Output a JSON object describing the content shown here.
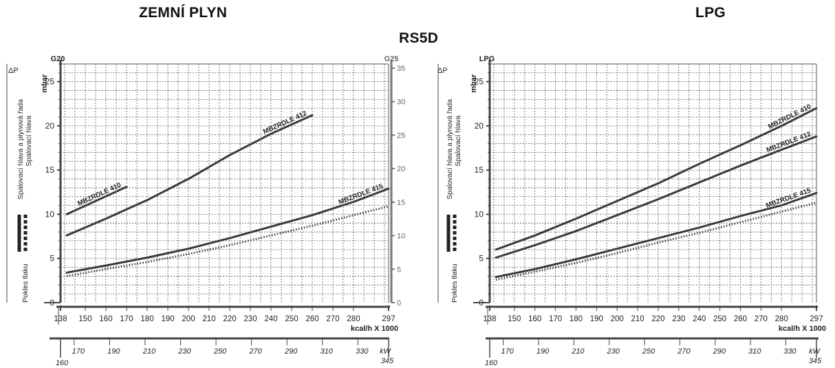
{
  "titles": {
    "left": "ZEMNÍ PLYN",
    "right": "LPG",
    "center": "RS5D"
  },
  "colors": {
    "line": "#3a3a3a",
    "grid": "#555555",
    "axis": "#444444"
  },
  "chart_data": [
    {
      "type": "line",
      "gas_label_left": "G20",
      "gas_label_right": "G25",
      "dp_label": "ΔP",
      "unit_label": "mbar",
      "ylabel_outer": "Pokles tlaku",
      "ylabel_head_train": "Spalovací hlava a plynová řada",
      "ylabel_head": "Spalovací hlava",
      "xlabel_kcal": "kcal/h X 1000",
      "xlabel_kw": "kW",
      "grid": true,
      "xlim": [
        138,
        297
      ],
      "ylim": [
        0,
        27
      ],
      "xticks": [
        138,
        150,
        160,
        170,
        180,
        190,
        200,
        210,
        220,
        230,
        240,
        250,
        260,
        270,
        280,
        297
      ],
      "xtick_labels": [
        "138",
        "150",
        "160",
        "170",
        "180",
        "190",
        "200",
        "210",
        "220",
        "230",
        "240",
        "250",
        "260",
        "270",
        "280",
        "297"
      ],
      "yticks_left": [
        0,
        5,
        10,
        15,
        20,
        25
      ],
      "ytick_labels_left": [
        "0",
        "5",
        "10",
        "15",
        "20",
        "25"
      ],
      "yticks_right": [
        0,
        5,
        10,
        15,
        20,
        25,
        30,
        35
      ],
      "ytick_labels_right": [
        "0",
        "5",
        "10",
        "15",
        "20",
        "25",
        "30",
        "35"
      ],
      "kw_axis": {
        "min_label": "160",
        "max_label": "345",
        "ticks": [
          170,
          190,
          210,
          230,
          250,
          270,
          290,
          310,
          330
        ],
        "tick_labels": [
          "170",
          "190",
          "210",
          "230",
          "250",
          "270",
          "290",
          "310",
          "330"
        ]
      },
      "series": [
        {
          "name": "MBZRDLE 410",
          "style": "solid",
          "x": [
            141,
            170
          ],
          "y": [
            10.0,
            13.1
          ]
        },
        {
          "name": "MBZRDLE 412",
          "style": "solid",
          "x": [
            141,
            160,
            180,
            200,
            220,
            240,
            260
          ],
          "y": [
            7.6,
            9.5,
            11.6,
            14.0,
            16.7,
            19.1,
            21.2
          ]
        },
        {
          "name": "MBZRDLE 415",
          "style": "solid",
          "x": [
            141,
            160,
            180,
            200,
            220,
            240,
            260,
            280,
            297
          ],
          "y": [
            3.4,
            4.2,
            5.1,
            6.1,
            7.3,
            8.6,
            9.9,
            11.4,
            12.9
          ]
        },
        {
          "name": "",
          "style": "dotted",
          "x": [
            141,
            160,
            180,
            200,
            220,
            240,
            260,
            280,
            297
          ],
          "y": [
            3.0,
            3.8,
            4.6,
            5.5,
            6.5,
            7.6,
            8.7,
            9.9,
            10.9
          ]
        }
      ]
    },
    {
      "type": "line",
      "gas_label_left": "LPG",
      "dp_label": "ΔP",
      "unit_label": "mbar",
      "ylabel_outer": "Pokles tlaku",
      "ylabel_head_train": "Spalovací hlava a plynová řada",
      "ylabel_head": "Spalovací hlava",
      "xlabel_kcal": "kcal/h X 1000",
      "xlabel_kw": "kW",
      "grid": true,
      "xlim": [
        138,
        297
      ],
      "ylim": [
        0,
        27
      ],
      "xticks": [
        138,
        150,
        160,
        170,
        180,
        190,
        200,
        210,
        220,
        230,
        240,
        250,
        260,
        270,
        280,
        297
      ],
      "xtick_labels": [
        "138",
        "150",
        "160",
        "170",
        "180",
        "190",
        "200",
        "210",
        "220",
        "230",
        "240",
        "250",
        "260",
        "270",
        "280",
        "297"
      ],
      "yticks_left": [
        0,
        5,
        10,
        15,
        20,
        25
      ],
      "ytick_labels_left": [
        "0",
        "5",
        "10",
        "15",
        "20",
        "25"
      ],
      "kw_axis": {
        "min_label": "160",
        "max_label": "345",
        "ticks": [
          170,
          190,
          210,
          230,
          250,
          270,
          290,
          310,
          330
        ],
        "tick_labels": [
          "170",
          "190",
          "210",
          "230",
          "250",
          "270",
          "290",
          "310",
          "330"
        ]
      },
      "series": [
        {
          "name": "MBZRDLE 410",
          "style": "solid",
          "x": [
            141,
            160,
            180,
            200,
            220,
            240,
            260,
            280,
            297
          ],
          "y": [
            6.0,
            7.6,
            9.5,
            11.5,
            13.5,
            15.7,
            17.8,
            20.0,
            22.0
          ]
        },
        {
          "name": "MBZRDLE 412",
          "style": "solid",
          "x": [
            141,
            160,
            180,
            200,
            220,
            240,
            260,
            280,
            297
          ],
          "y": [
            5.1,
            6.5,
            8.1,
            9.9,
            11.7,
            13.6,
            15.5,
            17.3,
            18.8
          ]
        },
        {
          "name": "MBZRDLE 415",
          "style": "solid",
          "x": [
            141,
            160,
            180,
            200,
            220,
            240,
            260,
            280,
            297
          ],
          "y": [
            2.9,
            3.8,
            4.9,
            6.1,
            7.3,
            8.5,
            9.8,
            11.0,
            12.4
          ]
        },
        {
          "name": "",
          "style": "dotted",
          "x": [
            141,
            160,
            180,
            200,
            220,
            240,
            260,
            280,
            297
          ],
          "y": [
            2.6,
            3.5,
            4.5,
            5.6,
            6.8,
            7.9,
            9.1,
            10.3,
            11.3
          ]
        }
      ]
    }
  ]
}
